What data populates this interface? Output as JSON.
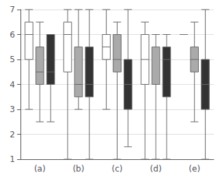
{
  "chart_data": {
    "type": "boxplot",
    "categories": [
      "(a)",
      "(b)",
      "(c)",
      "(d)",
      "(e)"
    ],
    "series": [
      {
        "color": "#ffffff",
        "values": [
          [
            3.0,
            5.0,
            6.0,
            6.5,
            7.0
          ],
          [
            1.0,
            4.5,
            6.0,
            6.5,
            7.0
          ],
          [
            3.0,
            5.0,
            5.5,
            6.0,
            7.0
          ],
          [
            1.0,
            4.0,
            5.0,
            6.0,
            6.5
          ],
          [
            6.0,
            6.0,
            6.0,
            6.0,
            6.0
          ]
        ]
      },
      {
        "color": "#aaaaaa",
        "values": [
          [
            2.5,
            4.0,
            4.5,
            5.5,
            6.5
          ],
          [
            3.0,
            3.5,
            4.0,
            5.5,
            7.0
          ],
          [
            1.0,
            4.5,
            5.0,
            6.0,
            6.5
          ],
          [
            1.0,
            4.0,
            4.0,
            5.5,
            6.0
          ],
          [
            2.5,
            4.5,
            5.0,
            5.5,
            6.5
          ]
        ]
      },
      {
        "color": "#333333",
        "values": [
          [
            2.5,
            4.0,
            4.5,
            6.0,
            6.0
          ],
          [
            1.0,
            3.5,
            4.0,
            5.5,
            7.0
          ],
          [
            1.5,
            3.0,
            4.0,
            5.0,
            7.0
          ],
          [
            1.0,
            3.5,
            5.0,
            5.5,
            6.0
          ],
          [
            1.0,
            3.0,
            4.0,
            5.0,
            7.0
          ]
        ]
      }
    ],
    "ylim": [
      1,
      7
    ],
    "yticks": [
      1,
      2,
      3,
      4,
      5,
      6,
      7
    ],
    "grid": true
  }
}
